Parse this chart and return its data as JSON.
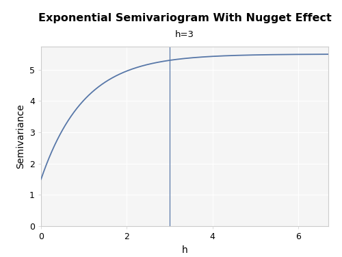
{
  "title": "Exponential Semivariogram With Nugget Effect",
  "subtitle": "h=3",
  "xlabel": "h",
  "ylabel": "Semivariance",
  "nugget": 1.5,
  "sill": 5.5,
  "range_param": 1.0,
  "vline_x": 3,
  "x_min": 0.0,
  "x_max": 6.7,
  "y_min": 0.0,
  "y_max": 5.75,
  "line_color": "#5777a8",
  "vline_color": "#5777a8",
  "background_color": "#ffffff",
  "plot_bg_color": "#f5f5f5",
  "grid_color": "#ffffff",
  "border_color": "#cccccc",
  "title_fontsize": 11.5,
  "subtitle_fontsize": 9.5,
  "axis_label_fontsize": 10,
  "tick_fontsize": 9,
  "x_ticks": [
    0,
    2,
    4,
    6
  ],
  "y_ticks": [
    0,
    1,
    2,
    3,
    4,
    5
  ]
}
